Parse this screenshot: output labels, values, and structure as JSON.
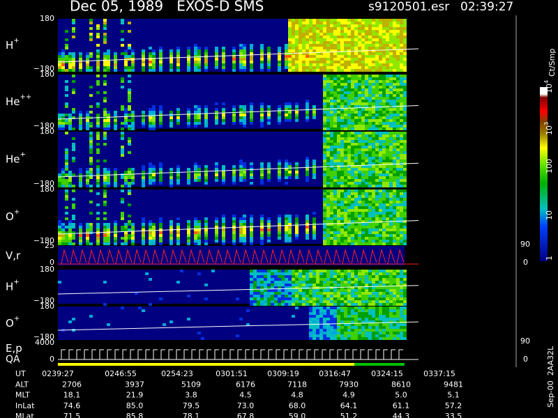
{
  "header": {
    "title": "Dec 05, 1989   EXOS-D SMS",
    "file": "s9120501.esr",
    "time": "02:39:27"
  },
  "panels": [
    {
      "label": "H",
      "sup": "+",
      "top": "180",
      "bottom": "−180"
    },
    {
      "label": "He",
      "sup": "++",
      "top": "180",
      "bottom": "−180"
    },
    {
      "label": "He",
      "sup": "+",
      "top": "180",
      "bottom": "−180"
    },
    {
      "label": "O",
      "sup": "+",
      "top": "180",
      "bottom": "−180"
    },
    {
      "label": "V,r",
      "top": "25",
      "bottom": "0",
      "right_top": "90",
      "right_bottom": "0"
    },
    {
      "label": "H",
      "sup": "+",
      "top": "180",
      "bottom": "−180"
    },
    {
      "label": "O",
      "sup": "+",
      "top": "180",
      "bottom": "−180"
    },
    {
      "label": "E,p",
      "label2": "QA",
      "top": "4000",
      "bottom": "0",
      "right_top": "90",
      "right_bottom": "0"
    }
  ],
  "colorbar": {
    "unit": "Ct/Smp",
    "ticks": [
      {
        "text": "1"
      },
      {
        "text": "10"
      },
      {
        "text": "100"
      },
      {
        "text": "10",
        "sup": "3"
      },
      {
        "text": "10",
        "sup": "4"
      }
    ]
  },
  "table": [
    {
      "name": "UT",
      "values": [
        "0239:27",
        "0246:55",
        "0254:23",
        "0301:51",
        "0309:19",
        "0316:47",
        "0324:15",
        "0337:15"
      ]
    },
    {
      "name": "ALT",
      "values": [
        "2706",
        "3937",
        "5109",
        "6176",
        "7118",
        "7930",
        "8610",
        "9481"
      ]
    },
    {
      "name": "MLT",
      "values": [
        "18.1",
        "21.9",
        "3.8",
        "4.5",
        "4.8",
        "4.9",
        "5.0",
        "5.1"
      ]
    },
    {
      "name": "InLat",
      "values": [
        "74.6",
        "85.0",
        "79.5",
        "73.0",
        "68.0",
        "64.1",
        "61.1",
        "57.2"
      ]
    },
    {
      "name": "MLat",
      "values": [
        "71.5",
        "85.8",
        "78.1",
        "67.8",
        "59.0",
        "51.2",
        "44.3",
        "33.5"
      ]
    }
  ],
  "footer": "Sep-00  2AA32L"
}
